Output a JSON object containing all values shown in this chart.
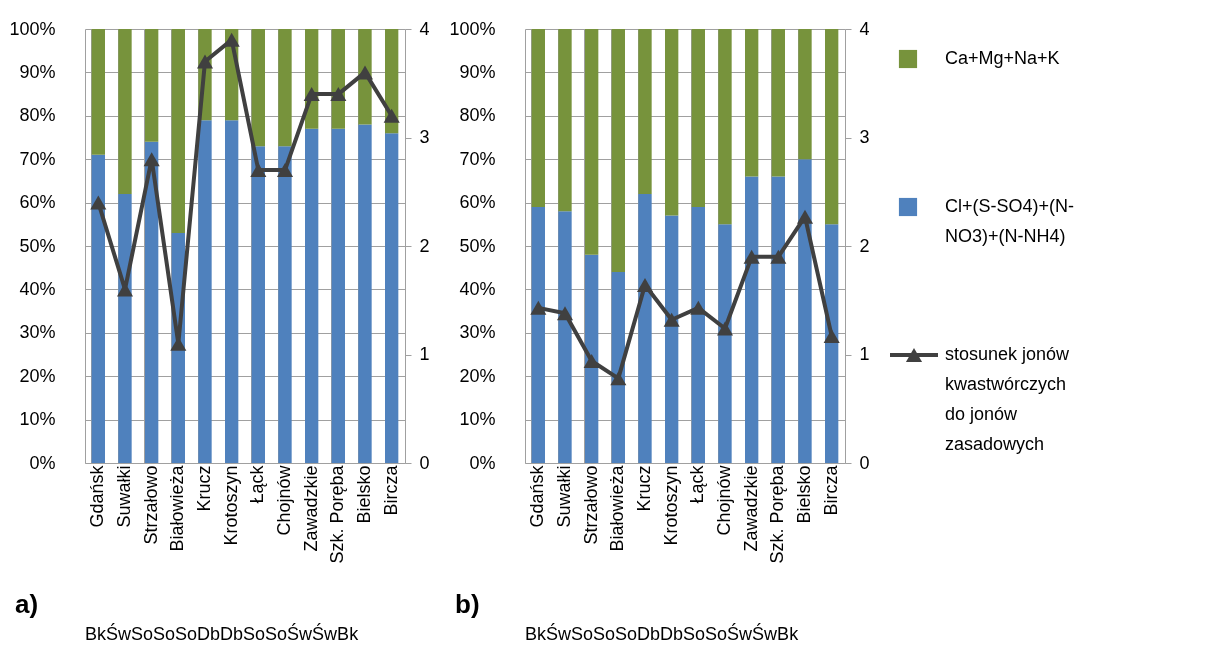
{
  "chart_data": [
    {
      "type": "bar",
      "stacked": true,
      "categories": [
        "Gdańsk",
        "Suwałki",
        "Strzałowo",
        "Białowieża",
        "Krucz",
        "Krotoszyn",
        "Łąck",
        "Chojnów",
        "Zawadzkie",
        "Szk. Poręba",
        "Bielsko",
        "Bircza"
      ],
      "series": [
        {
          "color": "#4f81bd",
          "values": [
            71,
            62,
            74,
            53,
            79,
            79,
            73,
            73,
            77,
            77,
            78,
            76
          ]
        },
        {
          "color": "#77933c",
          "values": [
            29,
            38,
            26,
            47,
            21,
            21,
            27,
            27,
            23,
            23,
            22,
            24
          ]
        },
        {
          "type": "line",
          "axis": "y2",
          "color": "#404040",
          "marker": "triangle",
          "values": [
            2.4,
            1.6,
            2.8,
            1.1,
            3.7,
            3.9,
            2.7,
            2.7,
            3.4,
            3.4,
            3.6,
            3.2
          ]
        }
      ],
      "ylim": [
        0,
        100
      ],
      "yticks": [
        {
          "value": 0,
          "label": "0%"
        },
        {
          "value": 10,
          "label": "10%"
        },
        {
          "value": 20,
          "label": "20%"
        },
        {
          "value": 30,
          "label": "30%"
        },
        {
          "value": 40,
          "label": "40%"
        },
        {
          "value": 50,
          "label": "50%"
        },
        {
          "value": 60,
          "label": "60%"
        },
        {
          "value": 70,
          "label": "70%"
        },
        {
          "value": 80,
          "label": "80%"
        },
        {
          "value": 90,
          "label": "90%"
        },
        {
          "value": 100,
          "label": "100%"
        }
      ],
      "y2lim": [
        0,
        4
      ],
      "y2ticks": [
        0,
        1,
        2,
        3,
        4
      ],
      "grid": true,
      "legend": false,
      "annotations": [
        "a)",
        "BkŚwSoSoSoDbDbSoSoŚwŚwBk"
      ]
    },
    {
      "type": "bar",
      "stacked": true,
      "categories": [
        "Gdańsk",
        "Suwałki",
        "Strzałowo",
        "Białowieża",
        "Krucz",
        "Krotoszyn",
        "Łąck",
        "Chojnów",
        "Zawadzkie",
        "Szk. Poręba",
        "Bielsko",
        "Bircza"
      ],
      "series": [
        {
          "name": "Cl+(S-SO4)+(N-NO3)+(N-NH4)",
          "color": "#4f81bd",
          "values": [
            59,
            58,
            48,
            44,
            62,
            57,
            59,
            55,
            66,
            66,
            70,
            55
          ]
        },
        {
          "name": "Ca+Mg+Na+K",
          "color": "#77933c",
          "values": [
            41,
            42,
            52,
            56,
            38,
            43,
            41,
            45,
            34,
            34,
            30,
            45
          ]
        },
        {
          "name": "stosunek jonów kwastwórczych do jonów zasadowych",
          "type": "line",
          "axis": "y2",
          "color": "#404040",
          "marker": "triangle",
          "values": [
            1.43,
            1.38,
            0.94,
            0.78,
            1.64,
            1.32,
            1.43,
            1.24,
            1.9,
            1.9,
            2.27,
            1.17
          ]
        }
      ],
      "ylim": [
        0,
        100
      ],
      "yticks": [
        {
          "value": 0,
          "label": "0%"
        },
        {
          "value": 10,
          "label": "10%"
        },
        {
          "value": 20,
          "label": "20%"
        },
        {
          "value": 30,
          "label": "30%"
        },
        {
          "value": 40,
          "label": "40%"
        },
        {
          "value": 50,
          "label": "50%"
        },
        {
          "value": 60,
          "label": "60%"
        },
        {
          "value": 70,
          "label": "70%"
        },
        {
          "value": 80,
          "label": "80%"
        },
        {
          "value": 90,
          "label": "90%"
        },
        {
          "value": 100,
          "label": "100%"
        }
      ],
      "y2lim": [
        0,
        4
      ],
      "y2ticks": [
        0,
        1,
        2,
        3,
        4
      ],
      "grid": true,
      "legend": "right",
      "annotations": [
        "b)",
        "BkŚwSoSoSoDbDbSoSoŚwŚwBk"
      ]
    }
  ]
}
